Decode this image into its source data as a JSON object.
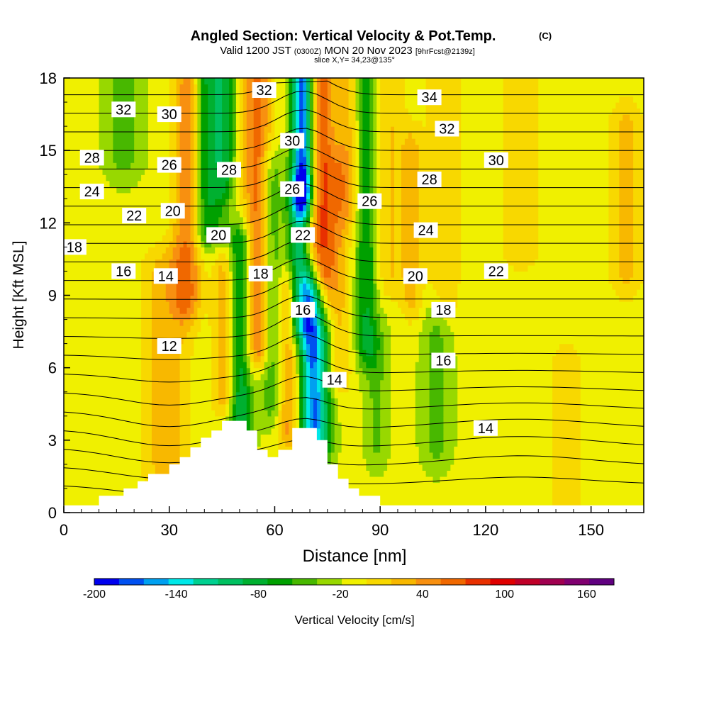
{
  "colors": {
    "background": "#ffffff",
    "text": "#000000",
    "terrain": "#ffffff",
    "contour": "#000000",
    "palette": [
      "#0000ee",
      "#0050f0",
      "#00a0f0",
      "#00e8e8",
      "#00d090",
      "#00c060",
      "#00b030",
      "#00a000",
      "#48b800",
      "#98d800",
      "#f0f000",
      "#f8d800",
      "#f8b800",
      "#f89010",
      "#f06800",
      "#e83000",
      "#e00000",
      "#c00028",
      "#a00050",
      "#800070",
      "#600080"
    ]
  },
  "header": {
    "title": "Angled Section: Vertical Velocity & Pot.Temp.",
    "copyright": "(C)",
    "valid_prefix": "Valid 1200 JST",
    "valid_zulu": "(0300Z)",
    "valid_suffix": "MON 20 Nov 2023",
    "forecast": "[9hrFcst@2139z]",
    "slice": "slice X,Y= 34,23@135°"
  },
  "chart_data": {
    "type": "heatmap",
    "title": "Angled Section: Vertical Velocity & Pot.Temp.",
    "xlabel": "Distance [nm]",
    "ylabel": "Height [Kft MSL]",
    "xlim": [
      0,
      165
    ],
    "ylim": [
      0,
      18
    ],
    "x_ticks": [
      0,
      30,
      60,
      90,
      120,
      150
    ],
    "y_ticks": [
      0,
      3,
      6,
      9,
      12,
      15,
      18
    ],
    "x_tick_labels": [
      "0",
      "30",
      "60",
      "90",
      "120",
      "150"
    ],
    "y_tick_labels": [
      "0",
      "3",
      "6",
      "9",
      "12",
      "15",
      "18"
    ],
    "colorbar": {
      "label": "Vertical Velocity [cm/s]",
      "min": -200,
      "max": 180,
      "step": 20,
      "tick_values": [
        -200,
        -140,
        -80,
        -20,
        40,
        100,
        160
      ],
      "tick_labels": [
        "-200",
        "-140",
        "-80",
        "-20",
        "40",
        "100",
        "160"
      ]
    },
    "vertical_velocity_features": [
      {
        "x": 17,
        "half_width": 5,
        "w": -40,
        "z_from": 15,
        "z_to": 18
      },
      {
        "x": 29,
        "half_width": 7,
        "w": 45,
        "z_from": 2,
        "z_to": 10
      },
      {
        "x": 35,
        "half_width": 4,
        "w": 70,
        "z_from": 9,
        "z_to": 17.5
      },
      {
        "x": 40,
        "half_width": 3,
        "w": -60,
        "z_from": 12,
        "z_to": 18
      },
      {
        "x": 45,
        "half_width": 3.5,
        "w": -85,
        "z_from": 12,
        "z_to": 18
      },
      {
        "x": 46,
        "half_width": 3.5,
        "w": 60,
        "z_from": 5,
        "z_to": 12
      },
      {
        "x": 50,
        "half_width": 3.5,
        "w": -90,
        "z_from": 3.5,
        "z_to": 11
      },
      {
        "x": 55,
        "half_width": 4,
        "w": 85,
        "z_from": 7,
        "z_to": 18
      },
      {
        "x": 59,
        "half_width": 3,
        "w": -50,
        "z_from": 5,
        "z_to": 14
      },
      {
        "x": 64,
        "half_width": 3,
        "w": 60,
        "z_from": 3.5,
        "z_to": 9
      },
      {
        "x": 67,
        "half_width": 3.2,
        "w": -100,
        "z_from": 8,
        "z_to": 13
      },
      {
        "x": 68,
        "half_width": 3,
        "w": -185,
        "z_from": 13.5,
        "z_to": 18
      },
      {
        "x": 70.5,
        "half_width": 3.2,
        "w": -150,
        "z_from": 3.6,
        "z_to": 9
      },
      {
        "x": 73,
        "half_width": 4,
        "w": 90,
        "z_from": 10,
        "z_to": 18
      },
      {
        "x": 74,
        "half_width": 3,
        "w": -60,
        "z_from": 3,
        "z_to": 7
      },
      {
        "x": 78,
        "half_width": 4,
        "w": 40,
        "z_from": 6,
        "z_to": 14
      },
      {
        "x": 81,
        "half_width": 4,
        "w": 40,
        "z_from": 13,
        "z_to": 18
      },
      {
        "x": 86,
        "half_width": 3,
        "w": -65,
        "z_from": 7,
        "z_to": 18
      },
      {
        "x": 89,
        "half_width": 3,
        "w": -30,
        "z_from": 3,
        "z_to": 7
      },
      {
        "x": 93,
        "half_width": 4,
        "w": 35,
        "z_from": 10,
        "z_to": 18
      },
      {
        "x": 99,
        "half_width": 3,
        "w": 40,
        "z_from": 9,
        "z_to": 15
      },
      {
        "x": 106,
        "half_width": 4,
        "w": -35,
        "z_from": 3,
        "z_to": 8
      },
      {
        "x": 108,
        "half_width": 5,
        "w": 35,
        "z_from": 9,
        "z_to": 18
      },
      {
        "x": 130,
        "half_width": 6,
        "w": 30,
        "z_from": 11,
        "z_to": 18
      },
      {
        "x": 143,
        "half_width": 5,
        "w": 30,
        "z_from": 0,
        "z_to": 6
      },
      {
        "x": 160,
        "half_width": 5,
        "w": 40,
        "z_from": 10,
        "z_to": 16
      }
    ],
    "terrain": [
      [
        0,
        0.3
      ],
      [
        10,
        0.3
      ],
      [
        10,
        0.7
      ],
      [
        17,
        0.7
      ],
      [
        17,
        1.0
      ],
      [
        21,
        1.0
      ],
      [
        21,
        1.3
      ],
      [
        24,
        1.3
      ],
      [
        24,
        1.6
      ],
      [
        30,
        1.6
      ],
      [
        30,
        2.0
      ],
      [
        33,
        2.0
      ],
      [
        33,
        2.3
      ],
      [
        36,
        2.3
      ],
      [
        36,
        2.7
      ],
      [
        39,
        2.7
      ],
      [
        39,
        3.1
      ],
      [
        42,
        3.1
      ],
      [
        42,
        3.4
      ],
      [
        45,
        3.4
      ],
      [
        45,
        3.8
      ],
      [
        52,
        3.8
      ],
      [
        52,
        3.4
      ],
      [
        55,
        3.4
      ],
      [
        55,
        2.6
      ],
      [
        58,
        2.6
      ],
      [
        58,
        2.3
      ],
      [
        61,
        2.3
      ],
      [
        61,
        2.6
      ],
      [
        65,
        2.6
      ],
      [
        65,
        3.5
      ],
      [
        72,
        3.5
      ],
      [
        72,
        3.0
      ],
      [
        75,
        3.0
      ],
      [
        75,
        2.0
      ],
      [
        78,
        2.0
      ],
      [
        78,
        1.4
      ],
      [
        81,
        1.4
      ],
      [
        81,
        1.0
      ],
      [
        84,
        1.0
      ],
      [
        84,
        0.7
      ],
      [
        90,
        0.7
      ],
      [
        90,
        0.3
      ],
      [
        165,
        0.3
      ]
    ],
    "theta_contour_levels": [
      12,
      13,
      14,
      15,
      16,
      17,
      18,
      19,
      20,
      21,
      22,
      23,
      24,
      25,
      26,
      27,
      28,
      29,
      30,
      31,
      32,
      33,
      34,
      35
    ],
    "theta_contour_labels": [
      {
        "label": "32",
        "x": 17,
        "z": 16.7
      },
      {
        "label": "30",
        "x": 30,
        "z": 16.5
      },
      {
        "label": "28",
        "x": 8,
        "z": 14.7
      },
      {
        "label": "26",
        "x": 30,
        "z": 14.4
      },
      {
        "label": "24",
        "x": 8,
        "z": 13.3
      },
      {
        "label": "22",
        "x": 20,
        "z": 12.3
      },
      {
        "label": "20",
        "x": 31,
        "z": 12.5
      },
      {
        "label": "18",
        "x": 3,
        "z": 11.0
      },
      {
        "label": "16",
        "x": 17,
        "z": 10.0
      },
      {
        "label": "14",
        "x": 29,
        "z": 9.8
      },
      {
        "label": "12",
        "x": 30,
        "z": 6.9
      },
      {
        "label": "20",
        "x": 44,
        "z": 11.5
      },
      {
        "label": "28",
        "x": 47,
        "z": 14.2
      },
      {
        "label": "32",
        "x": 57,
        "z": 17.5
      },
      {
        "label": "18",
        "x": 56,
        "z": 9.9
      },
      {
        "label": "30",
        "x": 65,
        "z": 15.4
      },
      {
        "label": "26",
        "x": 65,
        "z": 13.4
      },
      {
        "label": "22",
        "x": 68,
        "z": 11.5
      },
      {
        "label": "16",
        "x": 68,
        "z": 8.4
      },
      {
        "label": "14",
        "x": 77,
        "z": 5.5
      },
      {
        "label": "26",
        "x": 87,
        "z": 12.9
      },
      {
        "label": "34",
        "x": 104,
        "z": 17.2
      },
      {
        "label": "32",
        "x": 109,
        "z": 15.9
      },
      {
        "label": "28",
        "x": 104,
        "z": 13.8
      },
      {
        "label": "30",
        "x": 123,
        "z": 14.6
      },
      {
        "label": "24",
        "x": 103,
        "z": 11.7
      },
      {
        "label": "20",
        "x": 100,
        "z": 9.8
      },
      {
        "label": "22",
        "x": 123,
        "z": 10.0
      },
      {
        "label": "18",
        "x": 108,
        "z": 8.4
      },
      {
        "label": "16",
        "x": 108,
        "z": 6.3
      },
      {
        "label": "14",
        "x": 120,
        "z": 3.5
      }
    ]
  }
}
